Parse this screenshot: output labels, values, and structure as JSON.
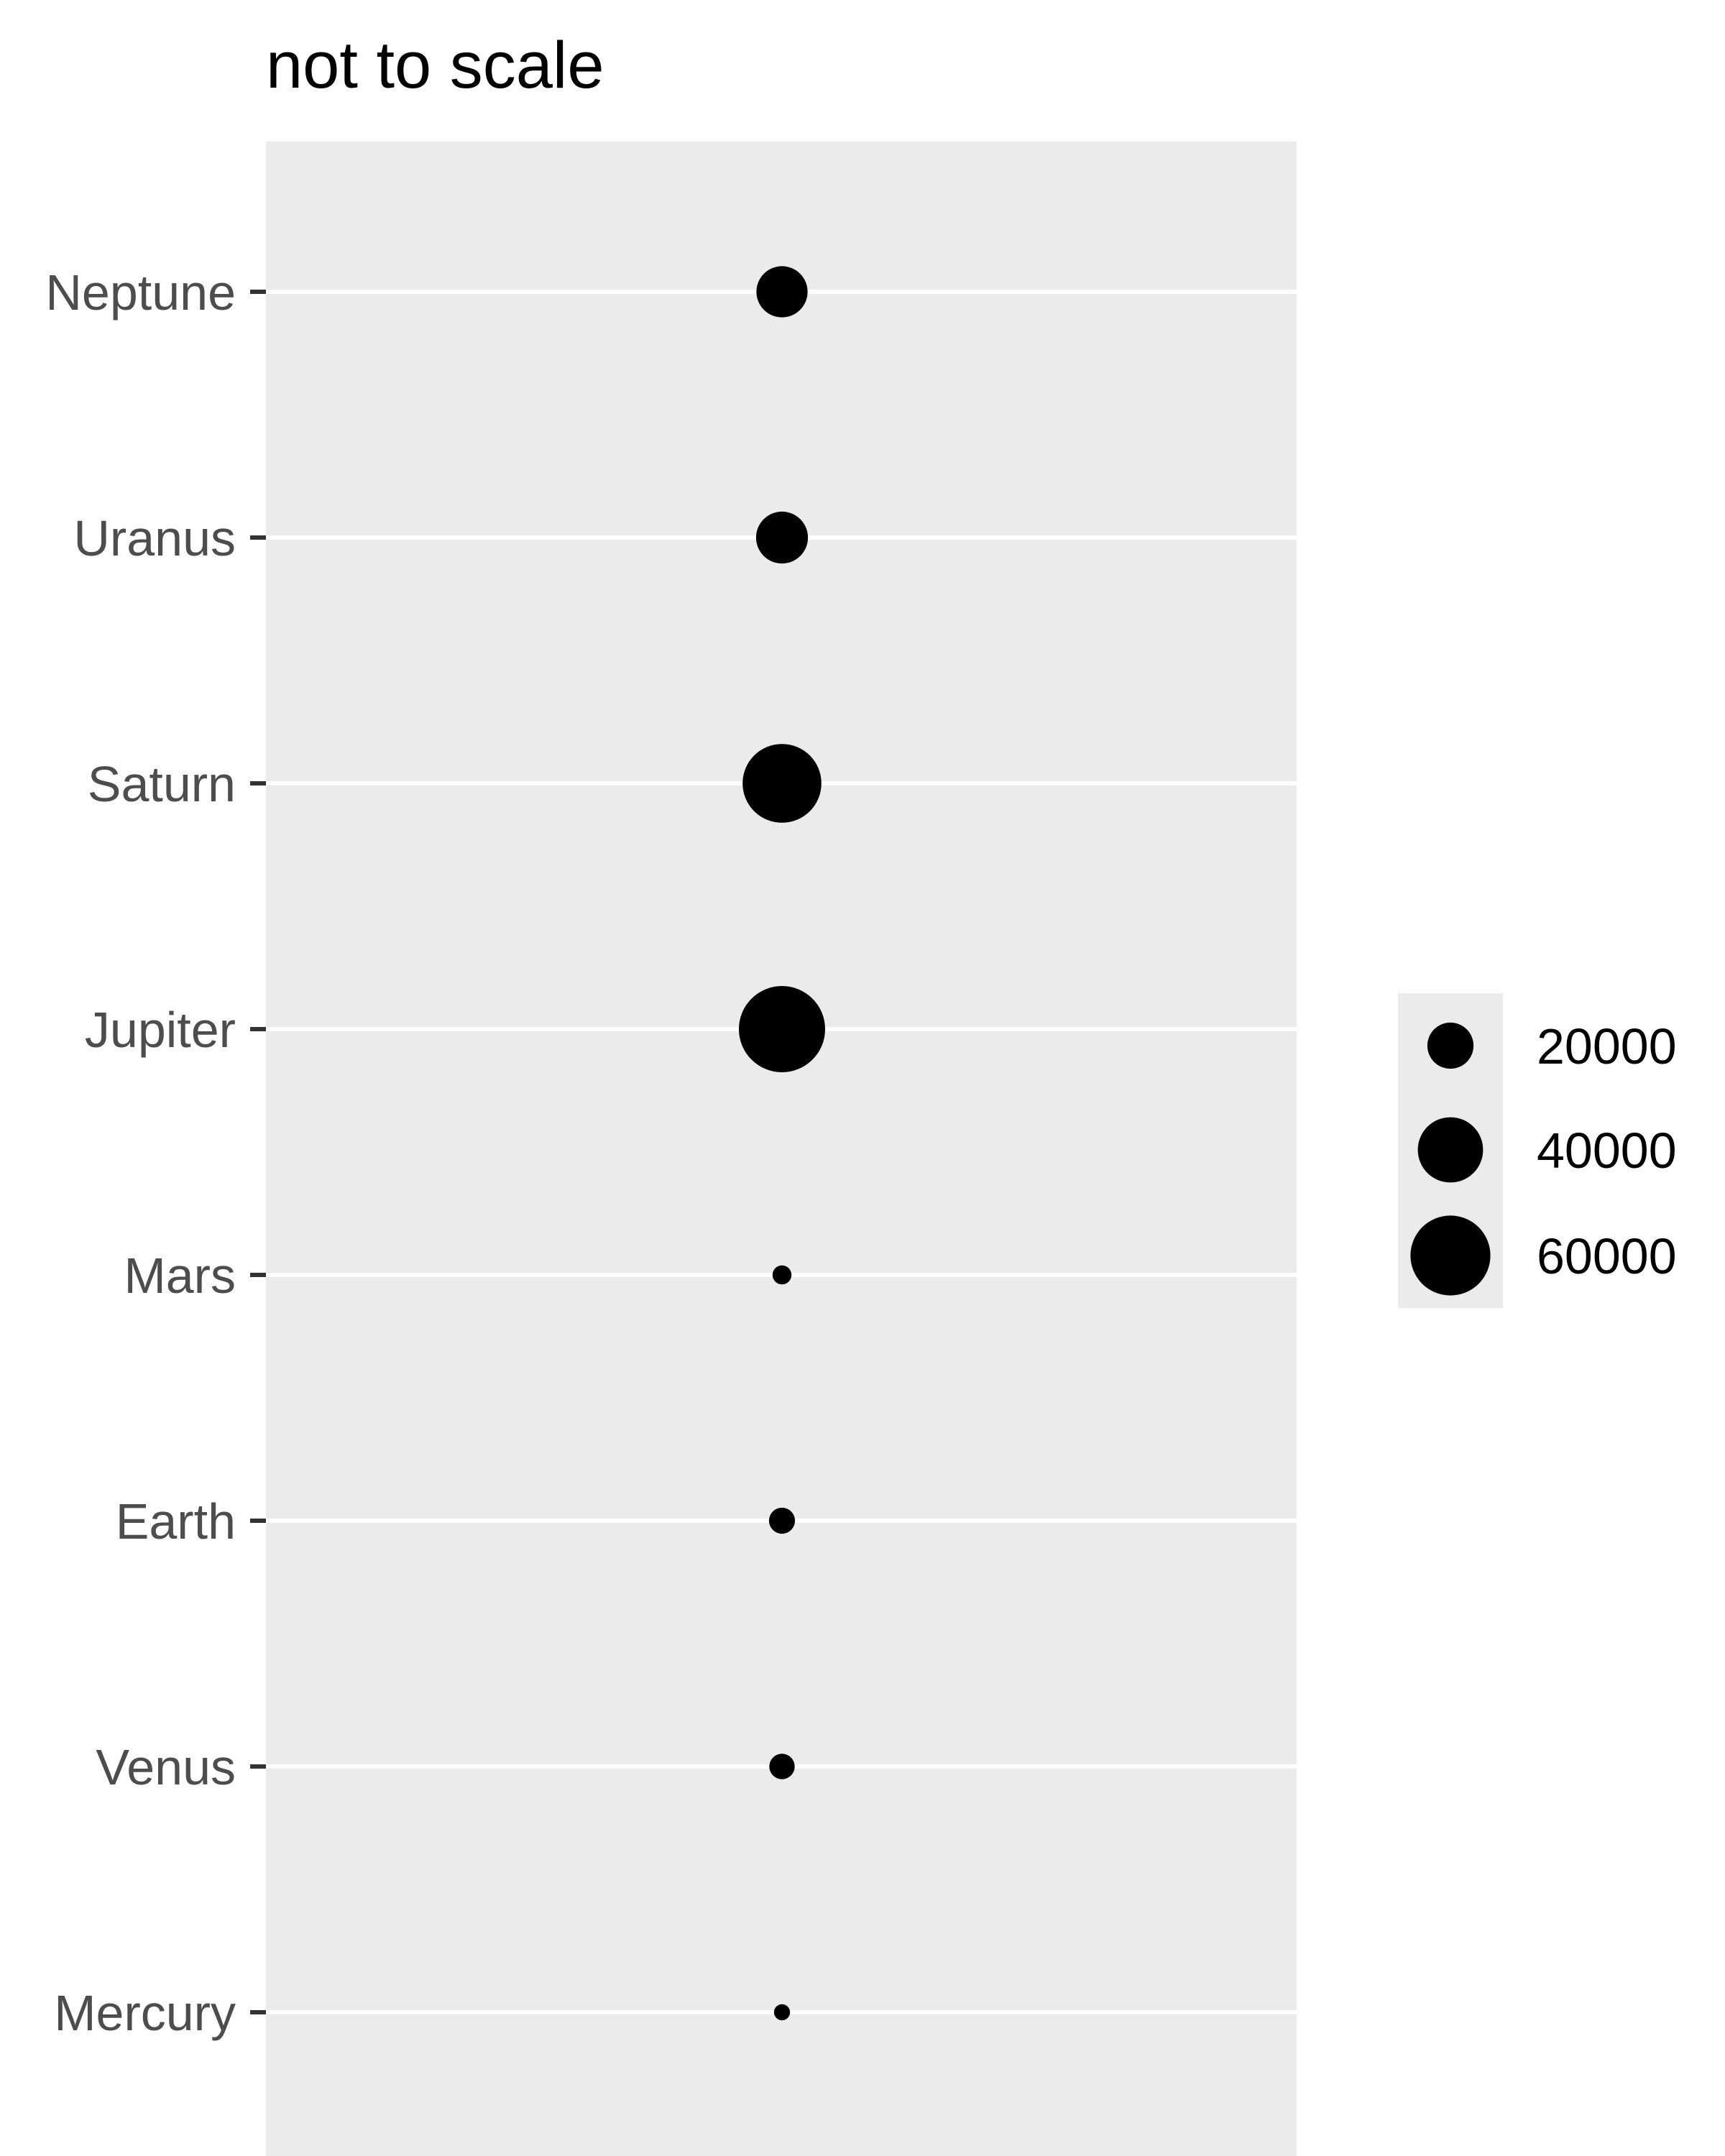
{
  "chart_data": {
    "type": "scatter",
    "title": "not to scale",
    "xlabel": "",
    "ylabel": "",
    "categories": [
      "Mercury",
      "Venus",
      "Earth",
      "Mars",
      "Jupiter",
      "Saturn",
      "Uranus",
      "Neptune"
    ],
    "size_values": [
      2440,
      6052,
      6371,
      3390,
      69911,
      58232,
      25362,
      24622
    ],
    "grid": true,
    "legend": {
      "position": "right",
      "entries": [
        {
          "label": "20000",
          "value": 20000
        },
        {
          "label": "40000",
          "value": 40000
        },
        {
          "label": "60000",
          "value": 60000
        }
      ]
    },
    "colors": {
      "panel": "#ebebeb",
      "gridline": "#ffffff",
      "point": "#000000",
      "tick": "#333333",
      "tick_label": "#4d4d4d"
    }
  }
}
